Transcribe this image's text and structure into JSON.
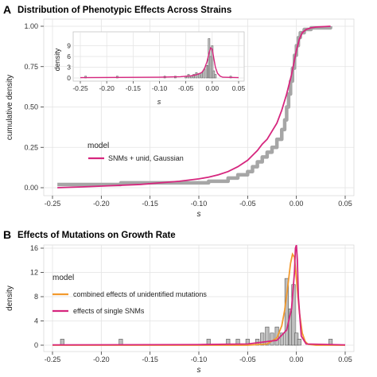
{
  "colors": {
    "magenta": "#d6267e",
    "orange": "#f29a2e",
    "grey_step": "#a6a6a6",
    "bar_fill": "#bfbfbf",
    "bar_stroke": "#555555",
    "grid": "#e3e3e3"
  },
  "chart_data": [
    {
      "panel": "A",
      "type": "line",
      "title": "Distribution of Phenotypic Effects Across Strains",
      "xlabel": "s",
      "ylabel": "cumulative density",
      "xlim": [
        -0.25,
        0.05
      ],
      "ylim": [
        0,
        1
      ],
      "x_ticks": [
        "-0.25",
        "-0.20",
        "-0.15",
        "-0.10",
        "-0.05",
        "0.00",
        "0.05"
      ],
      "y_ticks": [
        "0.00",
        "0.25",
        "0.50",
        "0.75",
        "1.00"
      ],
      "grid": true,
      "legend": {
        "title": "model",
        "position": "center-left",
        "entries": [
          {
            "label": "SNMs + unid, Gaussian",
            "color": "#d6267e"
          }
        ]
      },
      "series": [
        {
          "name": "SNMs + unid, Gaussian",
          "color": "#d6267e",
          "x": [
            -0.245,
            -0.22,
            -0.2,
            -0.18,
            -0.16,
            -0.14,
            -0.12,
            -0.1,
            -0.09,
            -0.08,
            -0.07,
            -0.06,
            -0.05,
            -0.045,
            -0.04,
            -0.035,
            -0.03,
            -0.025,
            -0.02,
            -0.015,
            -0.01,
            -0.005,
            0.0,
            0.003,
            0.006,
            0.01,
            0.015,
            0.02,
            0.035
          ],
          "y": [
            0.0,
            0.005,
            0.01,
            0.015,
            0.02,
            0.03,
            0.04,
            0.055,
            0.065,
            0.08,
            0.1,
            0.13,
            0.17,
            0.2,
            0.23,
            0.27,
            0.3,
            0.35,
            0.4,
            0.48,
            0.58,
            0.7,
            0.85,
            0.92,
            0.96,
            0.98,
            0.99,
            0.995,
            1.0
          ]
        },
        {
          "name": "empirical",
          "color": "#a6a6a6",
          "step": true,
          "x": [
            -0.245,
            -0.18,
            -0.09,
            -0.07,
            -0.06,
            -0.05,
            -0.045,
            -0.04,
            -0.035,
            -0.03,
            -0.025,
            -0.02,
            -0.015,
            -0.012,
            -0.01,
            -0.008,
            -0.006,
            -0.004,
            -0.002,
            0.0,
            0.002,
            0.004,
            0.008,
            0.015,
            0.035
          ],
          "y": [
            0.02,
            0.03,
            0.04,
            0.06,
            0.08,
            0.1,
            0.13,
            0.16,
            0.19,
            0.22,
            0.25,
            0.3,
            0.36,
            0.42,
            0.5,
            0.58,
            0.66,
            0.74,
            0.82,
            0.88,
            0.93,
            0.96,
            0.98,
            0.99,
            1.0
          ]
        }
      ],
      "inset": {
        "type": "bar",
        "xlabel": "s",
        "ylabel": "density",
        "xlim": [
          -0.25,
          0.05
        ],
        "ylim": [
          0,
          12
        ],
        "x_ticks": [
          "-0.25",
          "-0.20",
          "-0.15",
          "-0.10",
          "-0.05",
          "0.00",
          "0.05"
        ],
        "y_ticks": [
          "0",
          "3",
          "6",
          "9"
        ],
        "bars": {
          "x": [
            -0.24,
            -0.18,
            -0.09,
            -0.07,
            -0.05,
            -0.045,
            -0.04,
            -0.035,
            -0.03,
            -0.025,
            -0.02,
            -0.015,
            -0.01,
            -0.006,
            -0.003,
            0.0,
            0.003,
            0.006,
            0.035
          ],
          "y": [
            0.5,
            0.5,
            0.5,
            0.5,
            0.5,
            1,
            0.5,
            1,
            1.5,
            1,
            1.5,
            2.5,
            3.5,
            11,
            6,
            9,
            2,
            1,
            0.5
          ]
        },
        "curve": {
          "color": "#d6267e",
          "x": [
            -0.25,
            -0.1,
            -0.06,
            -0.04,
            -0.03,
            -0.02,
            -0.015,
            -0.01,
            -0.006,
            -0.003,
            0.0,
            0.003,
            0.006,
            0.01,
            0.015,
            0.02,
            0.05
          ],
          "y": [
            0.1,
            0.2,
            0.35,
            0.6,
            0.9,
            1.5,
            2.5,
            4.5,
            7,
            8.4,
            8,
            5.5,
            3,
            1.3,
            0.5,
            0.2,
            0.1
          ]
        }
      }
    },
    {
      "panel": "B",
      "type": "bar",
      "title": "Effects of Mutations on Growth Rate",
      "xlabel": "s",
      "ylabel": "density",
      "xlim": [
        -0.25,
        0.05
      ],
      "ylim": [
        0,
        16
      ],
      "x_ticks": [
        "-0.25",
        "-0.20",
        "-0.15",
        "-0.10",
        "-0.05",
        "0.00",
        "0.05"
      ],
      "y_ticks": [
        "0",
        "4",
        "8",
        "12",
        "16"
      ],
      "grid": true,
      "legend": {
        "title": "model",
        "position": "center-left",
        "entries": [
          {
            "label": "combined effects of unidentified mutations",
            "color": "#f29a2e"
          },
          {
            "label": "effects of single SNMs",
            "color": "#d6267e"
          }
        ]
      },
      "bars": {
        "x": [
          -0.24,
          -0.18,
          -0.09,
          -0.07,
          -0.06,
          -0.05,
          -0.04,
          -0.035,
          -0.03,
          -0.025,
          -0.02,
          -0.015,
          -0.01,
          -0.006,
          -0.003,
          0.0,
          0.003,
          0.035
        ],
        "y": [
          1,
          1,
          1,
          1,
          1,
          1,
          1,
          2,
          3,
          2,
          3,
          2,
          11,
          6,
          10,
          2,
          1,
          1
        ]
      },
      "series": [
        {
          "name": "combined effects of unidentified mutations",
          "color": "#f29a2e",
          "x": [
            -0.25,
            -0.05,
            -0.03,
            -0.02,
            -0.015,
            -0.012,
            -0.009,
            -0.006,
            -0.004,
            -0.002,
            0.0,
            0.003,
            0.006,
            0.009,
            0.012,
            0.02,
            0.05
          ],
          "y": [
            0,
            0,
            0.2,
            1.2,
            3.2,
            5.8,
            9.5,
            13.5,
            15.0,
            14.5,
            11.0,
            5.5,
            2.0,
            0.6,
            0.15,
            0,
            0
          ]
        },
        {
          "name": "effects of single SNMs",
          "color": "#d6267e",
          "x": [
            -0.25,
            -0.1,
            -0.05,
            -0.02,
            -0.01,
            -0.005,
            -0.002,
            -0.001,
            0.0,
            0.001,
            0.002,
            0.005,
            0.01,
            0.05
          ],
          "y": [
            0.05,
            0.1,
            0.2,
            0.8,
            2.5,
            6.0,
            12.0,
            16.0,
            16.5,
            14.0,
            8.0,
            1.5,
            0.2,
            0.05
          ]
        }
      ]
    }
  ]
}
